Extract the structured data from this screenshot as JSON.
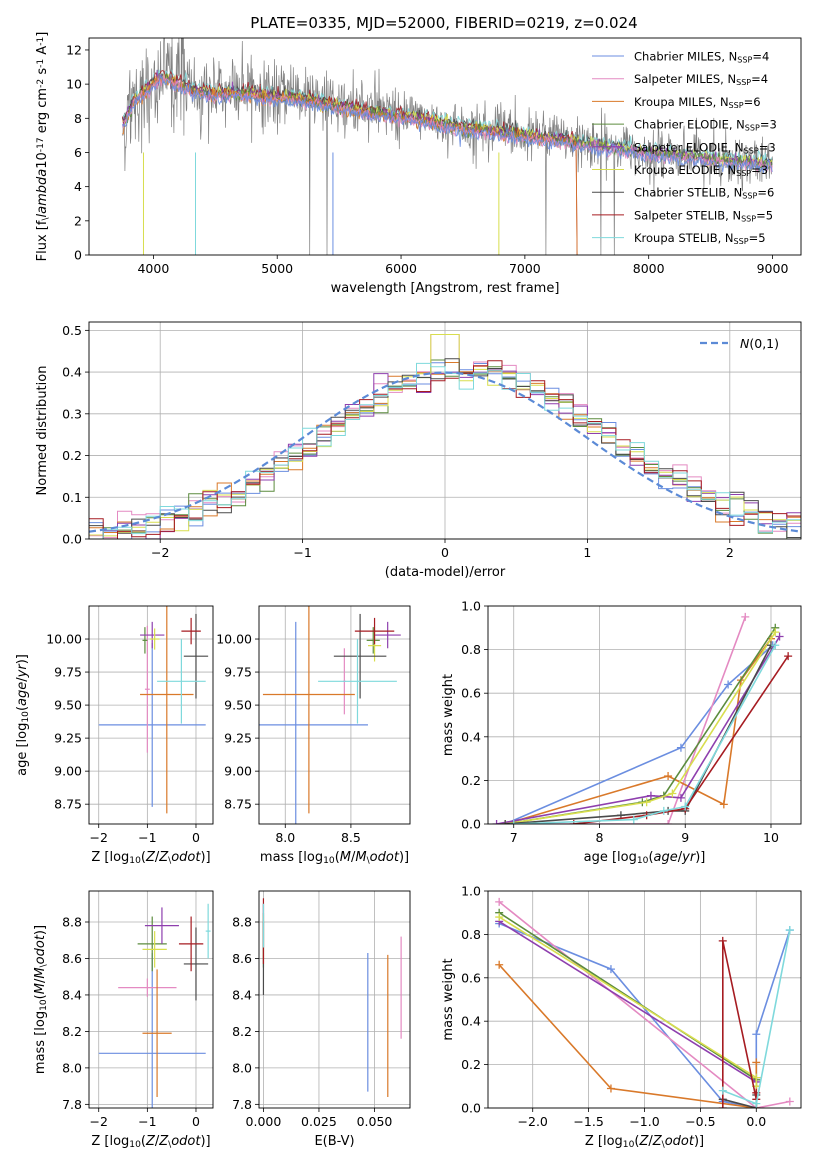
{
  "figure_title": "PLATE=0335, MJD=52000, FIBERID=0219, z=0.024",
  "series_colors": [
    "#6b8ee0",
    "#e48ac2",
    "#d9792a",
    "#5c8c3e",
    "#8e3fae",
    "#d8de4e",
    "#4a4a4a",
    "#a61c22",
    "#7fd9dc"
  ],
  "chart_data": [
    {
      "id": "spectrum",
      "type": "line",
      "title": "PLATE=0335, MJD=52000, FIBERID=0219, z=0.024",
      "xlabel": "wavelength [Angstrom, rest frame]",
      "ylabel": "Flux [f$_\\lambda$10$^{-17}$ erg cm$^{-2}$ s$^{-1}$ A$^{-1}$]",
      "xlim": [
        3480,
        9230
      ],
      "ylim": [
        0,
        12.7
      ],
      "xticks": [
        4000,
        5000,
        6000,
        7000,
        8000,
        9000
      ],
      "yticks": [
        0,
        2,
        4,
        6,
        8,
        10,
        12
      ],
      "grid": false,
      "legend_position": "upper-right",
      "legend": [
        {
          "label": "Chabrier MILES, N$_{SSP}$=4"
        },
        {
          "label": "Salpeter MILES, N$_{SSP}$=4"
        },
        {
          "label": "Kroupa MILES, N$_{SSP}$=6"
        },
        {
          "label": "Chabrier ELODIE, N$_{SSP}$=3"
        },
        {
          "label": "Salpeter ELODIE, N$_{SSP}$=3"
        },
        {
          "label": "Kroupa ELODIE, N$_{SSP}$=3"
        },
        {
          "label": "Chabrier STELIB, N$_{SSP}$=6"
        },
        {
          "label": "Salpeter STELIB, N$_{SSP}$=5"
        },
        {
          "label": "Kroupa STELIB, N$_{SSP}$=5"
        }
      ],
      "data_trend": {
        "x": [
          3750,
          3850,
          3950,
          4050,
          4150,
          4300,
          4500,
          4700,
          4900,
          5100,
          5300,
          5500,
          5700,
          5900,
          6100,
          6300,
          6500,
          6700,
          6900,
          7100,
          7300,
          7500,
          7700,
          7900,
          8100,
          8300,
          8500,
          8700,
          8900
        ],
        "y": [
          7.5,
          9.0,
          9.6,
          10.3,
          10.6,
          10.0,
          9.5,
          9.8,
          9.4,
          9.3,
          9.1,
          8.8,
          8.5,
          8.3,
          8.1,
          7.8,
          7.4,
          7.4,
          7.2,
          7.0,
          6.8,
          6.6,
          6.4,
          6.2,
          6.0,
          5.8,
          5.7,
          5.6,
          5.4
        ]
      },
      "model_trend": {
        "x": [
          3750,
          3850,
          3950,
          4050,
          4150,
          4300,
          4500,
          4700,
          4900,
          5100,
          5300,
          5500,
          5700,
          5900,
          6100,
          6300,
          6500,
          6700,
          6900,
          7100,
          7300,
          7500,
          7700,
          7900,
          8100,
          8300,
          8500,
          8700,
          8900
        ],
        "y": [
          7.6,
          9.1,
          9.7,
          10.4,
          10.2,
          9.7,
          9.4,
          9.5,
          9.3,
          9.2,
          9.0,
          8.7,
          8.4,
          8.2,
          8.0,
          7.7,
          7.4,
          7.3,
          7.1,
          6.9,
          6.7,
          6.5,
          6.3,
          6.1,
          5.9,
          5.8,
          5.6,
          5.5,
          5.4
        ]
      }
    },
    {
      "id": "residuals",
      "type": "line",
      "xlabel": "(data-model)/error",
      "ylabel": "Normed distribution",
      "xlim": [
        -2.5,
        2.5
      ],
      "ylim": [
        0,
        0.52
      ],
      "xticks": [
        -2,
        -1,
        0,
        1,
        2
      ],
      "yticks": [
        0.0,
        0.1,
        0.2,
        0.3,
        0.4,
        0.5
      ],
      "grid": true,
      "legend_position": "upper-right",
      "legend": [
        {
          "label": "$\\mathcal{N}(0,1)$"
        }
      ],
      "bin_edges_start": -2.6,
      "bin_width": 0.1,
      "n_bins": 52
    },
    {
      "id": "age-vs-Z",
      "type": "scatter",
      "xlabel": "Z [log$_{10}$($Z/Z_\\odot$)]",
      "ylabel": "age  [log$_{10}$($age/yr$)]",
      "xlim": [
        -2.2,
        0.35
      ],
      "ylim": [
        8.6,
        10.25
      ],
      "xticks": [
        -2,
        -1,
        0
      ],
      "yticks": [
        8.75,
        9.0,
        9.25,
        9.5,
        9.75,
        10.0
      ],
      "grid": true,
      "points": [
        {
          "s": 0,
          "x": -0.9,
          "xerr": 1.1,
          "y": 9.35,
          "yerr": 0.62
        },
        {
          "s": 1,
          "x": -1.0,
          "xerr": 0.05,
          "y": 9.62,
          "yerr": 0.48
        },
        {
          "s": 2,
          "x": -0.6,
          "xerr": 0.55,
          "y": 9.58,
          "yerr": 0.9
        },
        {
          "s": 3,
          "x": -1.05,
          "xerr": 0.05,
          "y": 9.99,
          "yerr": 0.1
        },
        {
          "s": 4,
          "x": -0.9,
          "xerr": 0.25,
          "y": 10.03,
          "yerr": 0.1
        },
        {
          "s": 5,
          "x": -0.85,
          "xerr": 0.1,
          "y": 10.0,
          "yerr": 0.08
        },
        {
          "s": 6,
          "x": 0.0,
          "xerr": 0.25,
          "y": 9.87,
          "yerr": 0.32
        },
        {
          "s": 7,
          "x": -0.1,
          "xerr": 0.2,
          "y": 10.06,
          "yerr": 0.1
        },
        {
          "s": 8,
          "x": -0.3,
          "xerr": 0.5,
          "y": 9.68,
          "yerr": 0.32
        }
      ]
    },
    {
      "id": "age-vs-mass",
      "type": "scatter",
      "xlabel": "mass [log$_{10}$($M/M_\\odot$)]",
      "ylabel": "",
      "xlim": [
        7.8,
        8.95
      ],
      "ylim": [
        8.6,
        10.25
      ],
      "xticks": [
        8.0,
        8.5
      ],
      "yticks": [
        8.75,
        9.0,
        9.25,
        9.5,
        9.75,
        10.0
      ],
      "grid": true,
      "points": [
        {
          "s": 0,
          "x": 8.08,
          "xerr": 0.55,
          "y": 9.35,
          "yerr": 0.78
        },
        {
          "s": 1,
          "x": 8.45,
          "xerr": 0.01,
          "y": 9.68,
          "yerr": 0.25
        },
        {
          "s": 2,
          "x": 8.18,
          "xerr": 0.35,
          "y": 9.58,
          "yerr": 0.9
        },
        {
          "s": 3,
          "x": 8.67,
          "xerr": 0.05,
          "y": 9.99,
          "yerr": 0.1
        },
        {
          "s": 4,
          "x": 8.78,
          "xerr": 0.1,
          "y": 10.03,
          "yerr": 0.1
        },
        {
          "s": 5,
          "x": 8.68,
          "xerr": 0.05,
          "y": 9.95,
          "yerr": 0.12
        },
        {
          "s": 6,
          "x": 8.57,
          "xerr": 0.2,
          "y": 9.87,
          "yerr": 0.32
        },
        {
          "s": 7,
          "x": 8.68,
          "xerr": 0.15,
          "y": 10.06,
          "yerr": 0.1
        },
        {
          "s": 8,
          "x": 8.55,
          "xerr": 0.3,
          "y": 9.68,
          "yerr": 0.32
        }
      ]
    },
    {
      "id": "massweight-vs-age",
      "type": "line",
      "xlabel": "age  [log$_{10}$($age/yr$)]",
      "ylabel": "mass weight",
      "xlim": [
        6.7,
        10.35
      ],
      "ylim": [
        0,
        1.0
      ],
      "xticks": [
        7,
        8,
        9,
        10
      ],
      "yticks": [
        0.0,
        0.2,
        0.4,
        0.6,
        0.8,
        1.0
      ],
      "grid": true,
      "series": [
        {
          "s": 0,
          "x": [
            6.9,
            8.95,
            9.5,
            10.02
          ],
          "y": [
            0.0,
            0.35,
            0.64,
            0.82
          ]
        },
        {
          "s": 1,
          "x": [
            6.9,
            8.8,
            9.7
          ],
          "y": [
            0.0,
            0.0,
            0.95
          ]
        },
        {
          "s": 2,
          "x": [
            6.9,
            8.8,
            9.45,
            9.65,
            10.0
          ],
          "y": [
            0.0,
            0.22,
            0.09,
            0.66,
            0.85
          ]
        },
        {
          "s": 3,
          "x": [
            6.9,
            8.5,
            8.75,
            10.05
          ],
          "y": [
            0.0,
            0.1,
            0.13,
            0.9
          ]
        },
        {
          "s": 4,
          "x": [
            6.8,
            8.6,
            8.95,
            10.1
          ],
          "y": [
            0.0,
            0.13,
            0.12,
            0.86
          ]
        },
        {
          "s": 5,
          "x": [
            6.9,
            8.55,
            8.85,
            10.05
          ],
          "y": [
            0.0,
            0.1,
            0.14,
            0.88
          ]
        },
        {
          "s": 6,
          "x": [
            6.9,
            8.25,
            8.8,
            9.0,
            10.0
          ],
          "y": [
            0.0,
            0.04,
            0.06,
            0.06,
            0.82
          ]
        },
        {
          "s": 7,
          "x": [
            7.7,
            8.55,
            9.0,
            10.2
          ],
          "y": [
            0.0,
            0.04,
            0.07,
            0.77
          ]
        },
        {
          "s": 8,
          "x": [
            7.0,
            8.4,
            8.75,
            9.0,
            10.05
          ],
          "y": [
            0.0,
            0.02,
            0.06,
            0.08,
            0.82
          ]
        }
      ]
    },
    {
      "id": "mass-vs-Z",
      "type": "scatter",
      "xlabel": "Z [log$_{10}$($Z/Z_\\odot$)]",
      "ylabel": "mass [log$_{10}$($M/M_\\odot$)]",
      "xlim": [
        -2.2,
        0.35
      ],
      "ylim": [
        7.78,
        8.97
      ],
      "xticks": [
        -2,
        -1,
        0
      ],
      "yticks": [
        7.8,
        8.0,
        8.2,
        8.4,
        8.6,
        8.8
      ],
      "grid": true,
      "points": [
        {
          "s": 0,
          "x": -0.9,
          "xerr": 1.1,
          "y": 8.08,
          "yerr": 0.55
        },
        {
          "s": 1,
          "x": -1.0,
          "xerr": 0.6,
          "y": 8.44,
          "yerr": 0.05
        },
        {
          "s": 2,
          "x": -0.8,
          "xerr": 0.3,
          "y": 8.19,
          "yerr": 0.35
        },
        {
          "s": 3,
          "x": -0.9,
          "xerr": 0.3,
          "y": 8.68,
          "yerr": 0.15
        },
        {
          "s": 4,
          "x": -0.7,
          "xerr": 0.35,
          "y": 8.78,
          "yerr": 0.1
        },
        {
          "s": 5,
          "x": -0.85,
          "xerr": 0.25,
          "y": 8.65,
          "yerr": 0.1
        },
        {
          "s": 6,
          "x": 0.0,
          "xerr": 0.25,
          "y": 8.57,
          "yerr": 0.2
        },
        {
          "s": 7,
          "x": -0.1,
          "xerr": 0.25,
          "y": 8.68,
          "yerr": 0.15
        },
        {
          "s": 8,
          "x": 0.25,
          "xerr": 0.05,
          "y": 8.75,
          "yerr": 0.15
        }
      ]
    },
    {
      "id": "mass-vs-EBV",
      "type": "scatter",
      "xlabel": "E(B-V)",
      "ylabel": "",
      "xlim": [
        -0.002,
        0.066
      ],
      "ylim": [
        7.78,
        8.97
      ],
      "xticks": [
        0.0,
        0.025,
        0.05
      ],
      "yticks": [
        7.8,
        8.0,
        8.2,
        8.4,
        8.6,
        8.8
      ],
      "grid": true,
      "points": [
        {
          "s": 0,
          "x": 0.047,
          "xerr": 0.0,
          "y": 8.25,
          "yerr": 0.38
        },
        {
          "s": 1,
          "x": 0.062,
          "xerr": 0.0,
          "y": 8.44,
          "yerr": 0.28
        },
        {
          "s": 2,
          "x": 0.056,
          "xerr": 0.0,
          "y": 8.23,
          "yerr": 0.39
        },
        {
          "s": 3,
          "x": 0.0,
          "xerr": 0.0,
          "y": 8.7,
          "yerr": 0.15
        },
        {
          "s": 4,
          "x": 0.0,
          "xerr": 0.0,
          "y": 8.78,
          "yerr": 0.12
        },
        {
          "s": 5,
          "x": 0.0,
          "xerr": 0.0,
          "y": 8.72,
          "yerr": 0.12
        },
        {
          "s": 6,
          "x": 0.0,
          "xerr": 0.0,
          "y": 8.6,
          "yerr": 0.2
        },
        {
          "s": 7,
          "x": 0.0,
          "xerr": 0.0,
          "y": 8.75,
          "yerr": 0.18
        },
        {
          "s": 8,
          "x": 0.0,
          "xerr": 0.0,
          "y": 8.78,
          "yerr": 0.12
        }
      ]
    },
    {
      "id": "massweight-vs-Z",
      "type": "line",
      "xlabel": "Z [log$_{10}$($Z/Z_\\odot$)]",
      "ylabel": "mass weight",
      "xlim": [
        -2.4,
        0.4
      ],
      "ylim": [
        0,
        1.0
      ],
      "xticks": [
        -2.0,
        -1.5,
        -1.0,
        -0.5,
        0.0
      ],
      "yticks": [
        0.0,
        0.2,
        0.4,
        0.6,
        0.8,
        1.0
      ],
      "grid": true,
      "series": [
        {
          "s": 0,
          "x": [
            -2.3,
            -1.3,
            -0.3,
            0.0,
            0.0,
            0.3
          ],
          "y": [
            0.85,
            0.64,
            0.03,
            0.0,
            0.34,
            0.82
          ]
        },
        {
          "s": 1,
          "x": [
            -2.3,
            0.0,
            0.3
          ],
          "y": [
            0.95,
            0.0,
            0.03
          ]
        },
        {
          "s": 2,
          "x": [
            -2.3,
            -1.3,
            0.0,
            0.0
          ],
          "y": [
            0.66,
            0.09,
            0.0,
            0.21
          ]
        },
        {
          "s": 3,
          "x": [
            -2.3,
            0.0,
            0.0
          ],
          "y": [
            0.9,
            0.13,
            0.1
          ]
        },
        {
          "s": 4,
          "x": [
            -2.3,
            0.0,
            0.0
          ],
          "y": [
            0.86,
            0.12,
            0.14
          ]
        },
        {
          "s": 5,
          "x": [
            -2.3,
            0.0,
            0.0
          ],
          "y": [
            0.88,
            0.14,
            0.1
          ]
        },
        {
          "s": 6,
          "x": [
            -0.3,
            0.0,
            0.0
          ],
          "y": [
            0.04,
            0.0,
            0.06
          ]
        },
        {
          "s": 7,
          "x": [
            -0.3,
            -0.3,
            0.0,
            0.0
          ],
          "y": [
            0.0,
            0.77,
            0.04,
            0.07
          ]
        },
        {
          "s": 8,
          "x": [
            -0.3,
            0.0,
            0.3
          ],
          "y": [
            0.08,
            0.02,
            0.82
          ]
        }
      ]
    }
  ]
}
